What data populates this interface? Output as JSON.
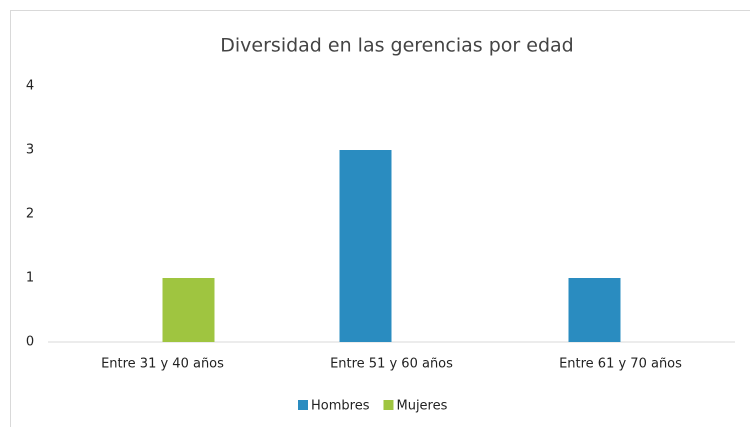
{
  "chart_data": {
    "type": "bar",
    "title": "Diversidad en las gerencias por edad",
    "categories": [
      "Entre 31 y 40 años",
      "Entre 51 y 60 años",
      "Entre 61 y 70 años"
    ],
    "series": [
      {
        "name": "Hombres",
        "color": "#2a8cc0",
        "values": [
          0,
          3,
          1
        ]
      },
      {
        "name": "Mujeres",
        "color": "#9fc540",
        "values": [
          1,
          0,
          0
        ]
      }
    ],
    "ylim": [
      0,
      4
    ],
    "yticks": [
      0,
      1,
      2,
      3,
      4
    ],
    "grid": false,
    "legend": "bottom"
  }
}
